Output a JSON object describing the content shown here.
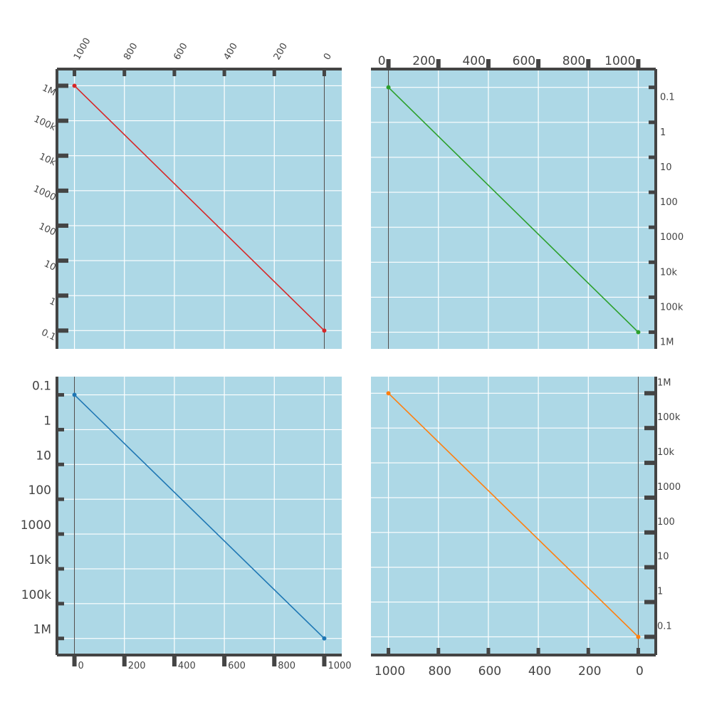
{
  "figure": {
    "background": "#ffffff",
    "plot_background": "#add8e6",
    "grid_color": "#ffffff",
    "axis_color": "#444444",
    "tick_label_color": "#444444"
  },
  "chart_data": [
    {
      "id": "top-left",
      "type": "line",
      "title": "",
      "xlabel": "",
      "ylabel": "",
      "x_scale": "linear",
      "y_scale": "log",
      "xlim": [
        1070,
        -70
      ],
      "ylim": [
        0.03,
        3000000
      ],
      "x_axis_side": "top",
      "y_axis_side": "left",
      "tick_labels_rotated": true,
      "grid": true,
      "zero_line": "x=0",
      "x_ticks": [
        1000,
        800,
        600,
        400,
        200,
        0
      ],
      "x_tick_labels": [
        "1000",
        "800",
        "600",
        "400",
        "200",
        "0"
      ],
      "y_ticks": [
        0.1,
        1,
        10,
        100,
        1000,
        10000,
        100000,
        1000000
      ],
      "y_tick_labels": [
        "0.1",
        "1",
        "10",
        "100",
        "1000",
        "10k",
        "100k",
        "1M"
      ],
      "series": [
        {
          "color": "#d62728",
          "points": [
            [
              1000,
              1000000
            ],
            [
              0,
              0.1
            ]
          ]
        }
      ]
    },
    {
      "id": "top-right",
      "type": "line",
      "title": "",
      "xlabel": "",
      "ylabel": "",
      "x_scale": "linear",
      "y_scale": "log",
      "xlim": [
        -70,
        1070
      ],
      "ylim": [
        3000000,
        0.03
      ],
      "x_axis_side": "top",
      "y_axis_side": "right",
      "tick_labels_rotated": false,
      "grid": true,
      "zero_line": "x=0",
      "x_ticks": [
        0,
        200,
        400,
        600,
        800,
        1000
      ],
      "x_tick_labels": [
        "0",
        "200",
        "400",
        "600",
        "800",
        "1000"
      ],
      "y_ticks": [
        0.1,
        1,
        10,
        100,
        1000,
        10000,
        100000,
        1000000
      ],
      "y_tick_labels": [
        "0.1",
        "1",
        "10",
        "100",
        "1000",
        "10k",
        "100k",
        "1M"
      ],
      "series": [
        {
          "color": "#2ca02c",
          "points": [
            [
              0,
              0.1
            ],
            [
              1000,
              1000000
            ]
          ]
        }
      ]
    },
    {
      "id": "bottom-left",
      "type": "line",
      "title": "",
      "xlabel": "",
      "ylabel": "",
      "x_scale": "linear",
      "y_scale": "log",
      "xlim": [
        -70,
        1070
      ],
      "ylim": [
        3000000,
        0.03
      ],
      "x_axis_side": "bottom",
      "y_axis_side": "left",
      "tick_labels_rotated": false,
      "grid": true,
      "zero_line": "x=0",
      "x_ticks": [
        0,
        200,
        400,
        600,
        800,
        1000
      ],
      "x_tick_labels": [
        "0",
        "200",
        "400",
        "600",
        "800",
        "1000"
      ],
      "y_ticks": [
        0.1,
        1,
        10,
        100,
        1000,
        10000,
        100000,
        1000000
      ],
      "y_tick_labels": [
        "0.1",
        "1",
        "10",
        "100",
        "1000",
        "10k",
        "100k",
        "1M"
      ],
      "series": [
        {
          "color": "#1f77b4",
          "points": [
            [
              0,
              0.1
            ],
            [
              1000,
              1000000
            ]
          ]
        }
      ]
    },
    {
      "id": "bottom-right",
      "type": "line",
      "title": "",
      "xlabel": "",
      "ylabel": "",
      "x_scale": "linear",
      "y_scale": "log",
      "xlim": [
        1070,
        -70
      ],
      "ylim": [
        0.03,
        3000000
      ],
      "x_axis_side": "bottom",
      "y_axis_side": "right",
      "tick_labels_rotated": false,
      "grid": true,
      "zero_line": "x=0",
      "x_ticks": [
        1000,
        800,
        600,
        400,
        200,
        0
      ],
      "x_tick_labels": [
        "1000",
        "800",
        "600",
        "400",
        "200",
        "0"
      ],
      "y_ticks": [
        0.1,
        1,
        10,
        100,
        1000,
        10000,
        100000,
        1000000
      ],
      "y_tick_labels": [
        "0.1",
        "1",
        "10",
        "100",
        "1000",
        "10k",
        "100k",
        "1M"
      ],
      "series": [
        {
          "color": "#ff7f0e",
          "points": [
            [
              1000,
              1000000
            ],
            [
              0,
              0.1
            ]
          ]
        }
      ]
    }
  ]
}
